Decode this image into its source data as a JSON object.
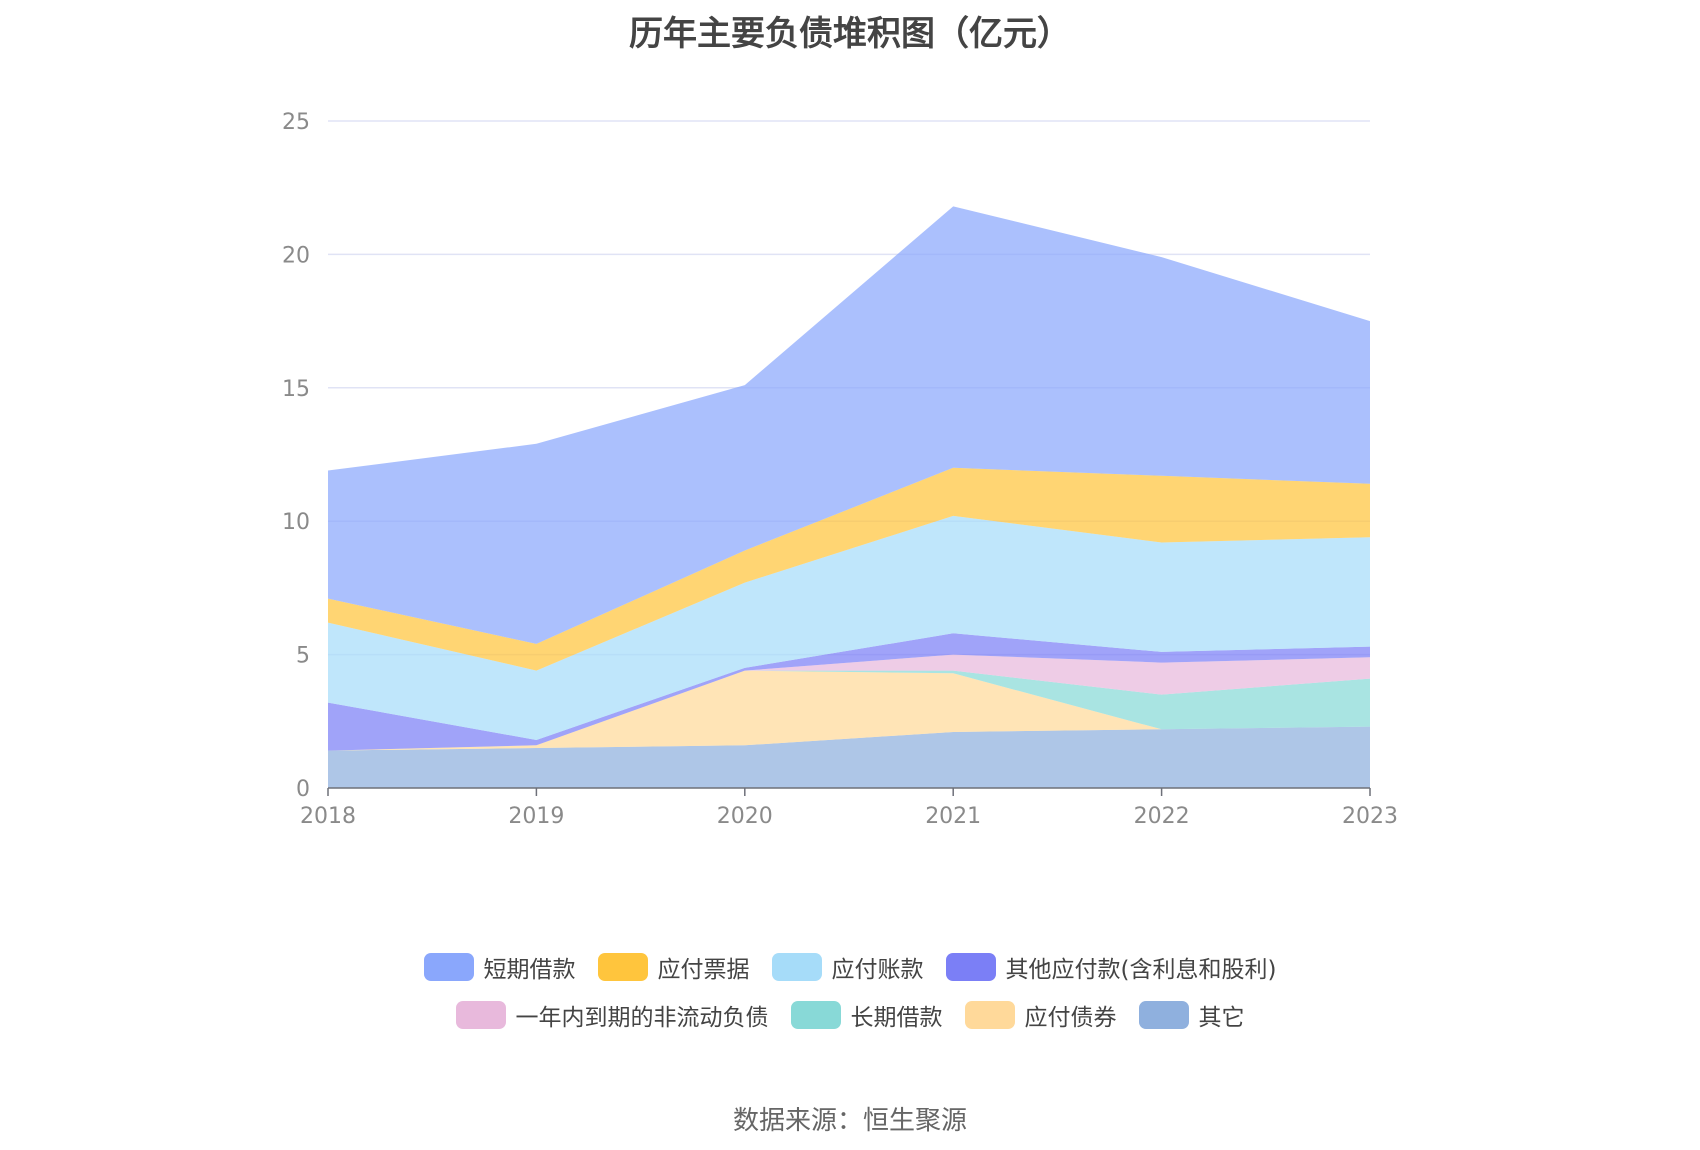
{
  "chart_data": {
    "type": "area",
    "stacked": true,
    "title": "历年主要负债堆积图（亿元）",
    "x": [
      "2018",
      "2019",
      "2020",
      "2021",
      "2022",
      "2023"
    ],
    "ylim": [
      0,
      25
    ],
    "yticks": [
      "0",
      "5",
      "10",
      "15",
      "20",
      "25"
    ],
    "grid": true,
    "legend_position": "bottom",
    "series": [
      {
        "name": "其它",
        "color": "#8fb0de",
        "values": [
          1.4,
          1.5,
          1.6,
          2.1,
          2.2,
          2.3
        ]
      },
      {
        "name": "应付债券",
        "color": "#ffd99a",
        "values": [
          0.0,
          0.1,
          2.8,
          2.2,
          0.0,
          0.0
        ]
      },
      {
        "name": "长期借款",
        "color": "#88d9d7",
        "values": [
          0.0,
          0.0,
          0.0,
          0.1,
          1.3,
          1.8
        ]
      },
      {
        "name": "一年内到期的非流动负债",
        "color": "#e8b9dc",
        "values": [
          0.0,
          0.0,
          0.0,
          0.6,
          1.2,
          0.8
        ]
      },
      {
        "name": "其他应付款(含利息和股利)",
        "color": "#7b7ff6",
        "values": [
          1.8,
          0.2,
          0.1,
          0.8,
          0.4,
          0.4
        ]
      },
      {
        "name": "应付账款",
        "color": "#a6dcf9",
        "values": [
          3.0,
          2.6,
          3.2,
          4.4,
          4.1,
          4.1
        ]
      },
      {
        "name": "应付票据",
        "color": "#ffc53d",
        "values": [
          0.9,
          1.0,
          1.2,
          1.8,
          2.5,
          2.0
        ]
      },
      {
        "name": "短期借款",
        "color": "#8aa7fc",
        "values": [
          4.8,
          7.5,
          6.2,
          9.8,
          8.2,
          6.1
        ]
      }
    ]
  },
  "legend": [
    {
      "label": "短期借款",
      "color": "#8aa7fc"
    },
    {
      "label": "应付票据",
      "color": "#ffc53d"
    },
    {
      "label": "应付账款",
      "color": "#a6dcf9"
    },
    {
      "label": "其他应付款(含利息和股利)",
      "color": "#7b7ff6"
    },
    {
      "label": "一年内到期的非流动负债",
      "color": "#e8b9dc"
    },
    {
      "label": "长期借款",
      "color": "#88d9d7"
    },
    {
      "label": "应付债券",
      "color": "#ffd99a"
    },
    {
      "label": "其它",
      "color": "#8fb0de"
    }
  ],
  "source": "数据来源：恒生聚源"
}
